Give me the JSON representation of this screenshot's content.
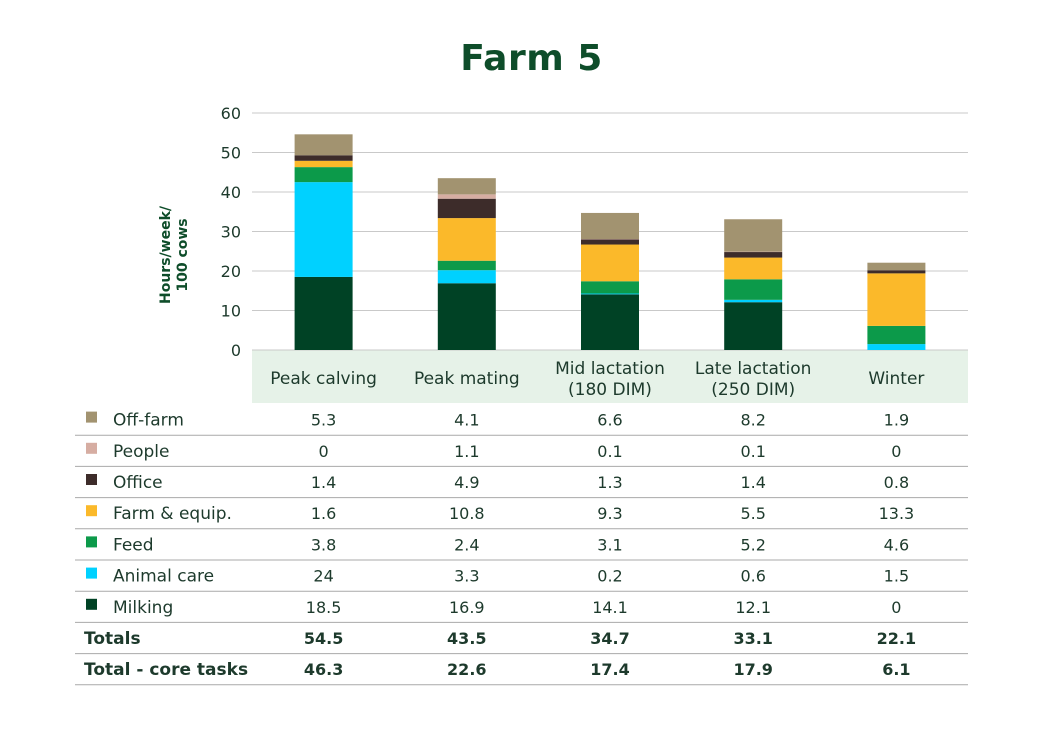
{
  "title": "Farm 5",
  "chart_data": {
    "type": "bar",
    "stacked": true,
    "title": "Farm 5",
    "ylabel": [
      "Hours/week/",
      "100 cows"
    ],
    "ylim": [
      0,
      60
    ],
    "yticks": [
      0,
      10,
      20,
      30,
      40,
      50,
      60
    ],
    "categories": [
      [
        "Peak calving"
      ],
      [
        "Peak mating"
      ],
      [
        "Mid lactation",
        "(180 DIM)"
      ],
      [
        "Late lactation",
        "(250 DIM)"
      ],
      [
        "Winter"
      ]
    ],
    "series": [
      {
        "name": "Milking",
        "color": "#004225",
        "values": [
          "18.5",
          "16.9",
          "14.1",
          "12.1",
          "0"
        ]
      },
      {
        "name": "Animal care",
        "color": "#00d1ff",
        "values": [
          "24",
          "3.3",
          "0.2",
          "0.6",
          "1.5"
        ]
      },
      {
        "name": "Feed",
        "color": "#0c9a4a",
        "values": [
          "3.8",
          "2.4",
          "3.1",
          "5.2",
          "4.6"
        ]
      },
      {
        "name": "Farm & equip.",
        "color": "#fbb92a",
        "values": [
          "1.6",
          "10.8",
          "9.3",
          "5.5",
          "13.3"
        ]
      },
      {
        "name": "Office",
        "color": "#3d2c2a",
        "values": [
          "1.4",
          "4.9",
          "1.3",
          "1.4",
          "0.8"
        ]
      },
      {
        "name": "People",
        "color": "#d6ada2",
        "values": [
          "0",
          "1.1",
          "0.1",
          "0.1",
          "0"
        ]
      },
      {
        "name": "Off-farm",
        "color": "#a29370",
        "values": [
          "5.3",
          "4.1",
          "6.6",
          "8.2",
          "1.9"
        ]
      }
    ],
    "totals": {
      "label": "Totals",
      "values": [
        "54.5",
        "43.5",
        "34.7",
        "33.1",
        "22.1"
      ]
    },
    "core_totals": {
      "label": "Total - core tasks",
      "values": [
        "46.3",
        "22.6",
        "17.4",
        "17.9",
        "6.1"
      ]
    },
    "grid": true,
    "category_band_color": "#e6f2e8"
  }
}
